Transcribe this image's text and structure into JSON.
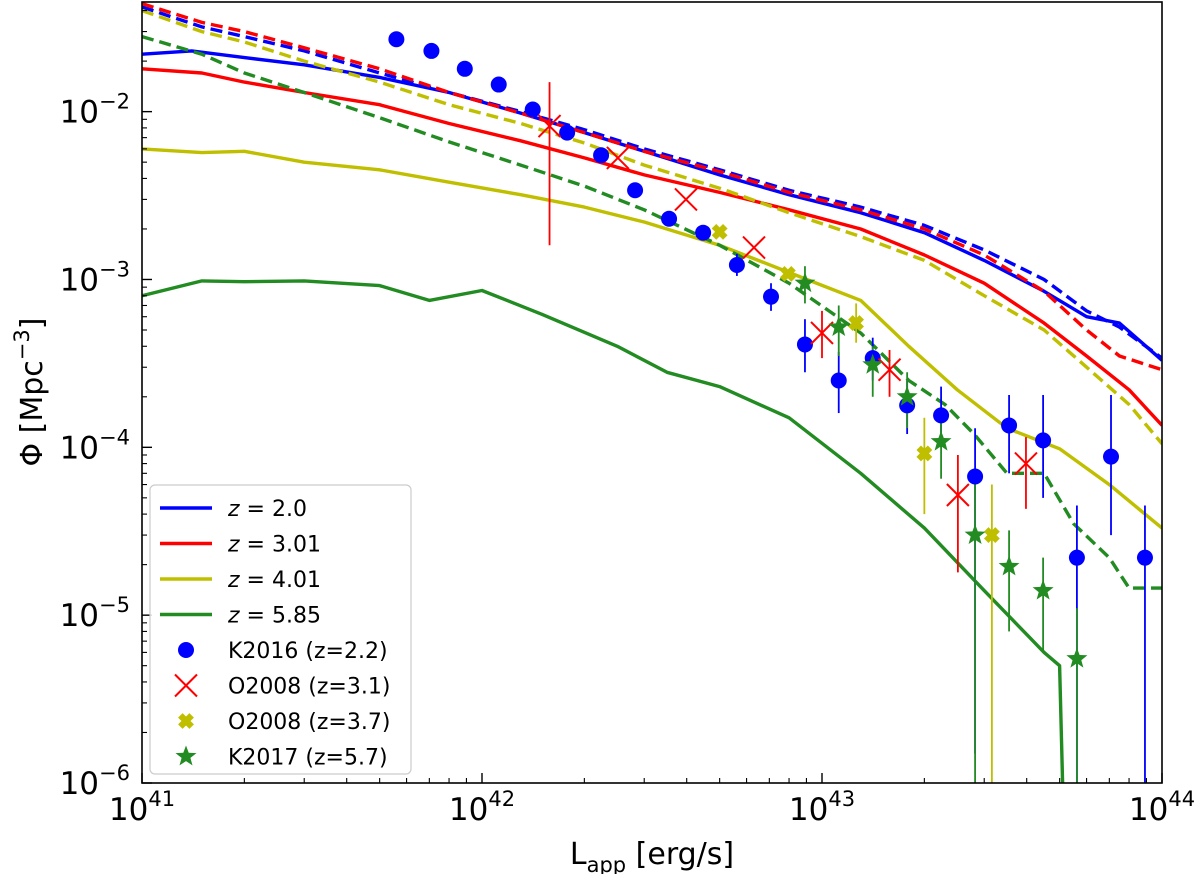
{
  "chart_data": {
    "type": "line",
    "xscale": "log",
    "yscale": "log",
    "xlabel_main": "L",
    "xlabel_sub": "app",
    "xlabel_unit": " [erg/s]",
    "ylabel_main": "Φ [Mpc",
    "ylabel_sup": "−3",
    "ylabel_end": "]",
    "xlim": [
      1e+41,
      1e+44
    ],
    "ylim": [
      1e-06,
      0.045
    ],
    "x_ticks": [
      {
        "value": 1e+41,
        "base": "10",
        "exp": "41"
      },
      {
        "value": 1e+42,
        "base": "10",
        "exp": "42"
      },
      {
        "value": 1e+43,
        "base": "10",
        "exp": "43"
      },
      {
        "value": 1e+44,
        "base": "10",
        "exp": "44"
      }
    ],
    "y_ticks": [
      {
        "value": 1e-06,
        "base": "10",
        "exp": "−6"
      },
      {
        "value": 1e-05,
        "base": "10",
        "exp": "−5"
      },
      {
        "value": 0.0001,
        "base": "10",
        "exp": "−4"
      },
      {
        "value": 0.001,
        "base": "10",
        "exp": "−3"
      },
      {
        "value": 0.01,
        "base": "10",
        "exp": "−2"
      }
    ],
    "legend_position": "lower-left",
    "model_series": [
      {
        "name": "z = 2.0",
        "z": "2.0",
        "color": "#0000ff",
        "solid": [
          [
            1e+41,
            0.022
          ],
          [
            1.4e+41,
            0.023
          ],
          [
            2e+41,
            0.021
          ],
          [
            3e+41,
            0.019
          ],
          [
            5e+41,
            0.016
          ],
          [
            8e+41,
            0.013
          ],
          [
            1.3e+42,
            0.0098
          ],
          [
            2e+42,
            0.0075
          ],
          [
            3e+42,
            0.0058
          ],
          [
            5e+42,
            0.0042
          ],
          [
            8e+42,
            0.0032
          ],
          [
            1.3e+43,
            0.0025
          ],
          [
            2e+43,
            0.0019
          ],
          [
            3e+43,
            0.0013
          ],
          [
            4.5e+43,
            0.00085
          ],
          [
            6e+43,
            0.0006
          ],
          [
            7.5e+43,
            0.00055
          ],
          [
            1e+44,
            0.00033
          ]
        ],
        "dashed": [
          [
            1e+41,
            0.042
          ],
          [
            1.5e+41,
            0.032
          ],
          [
            2e+41,
            0.028
          ],
          [
            3e+41,
            0.023
          ],
          [
            5e+41,
            0.017
          ],
          [
            8e+41,
            0.013
          ],
          [
            1.3e+42,
            0.01
          ],
          [
            2e+42,
            0.0078
          ],
          [
            3e+42,
            0.006
          ],
          [
            5e+42,
            0.0045
          ],
          [
            8e+42,
            0.0034
          ],
          [
            1.3e+43,
            0.0027
          ],
          [
            2e+43,
            0.0021
          ],
          [
            3e+43,
            0.0015
          ],
          [
            4.5e+43,
            0.001
          ],
          [
            6e+43,
            0.00065
          ],
          [
            7.5e+43,
            0.00052
          ],
          [
            1e+44,
            0.00034
          ]
        ]
      },
      {
        "name": "z = 3.01",
        "z": "3.01",
        "color": "#ff0000",
        "solid": [
          [
            1e+41,
            0.018
          ],
          [
            1.5e+41,
            0.017
          ],
          [
            2e+41,
            0.015
          ],
          [
            3e+41,
            0.013
          ],
          [
            5e+41,
            0.011
          ],
          [
            8e+41,
            0.0085
          ],
          [
            1.3e+42,
            0.0067
          ],
          [
            2e+42,
            0.0053
          ],
          [
            3e+42,
            0.0042
          ],
          [
            5e+42,
            0.0033
          ],
          [
            8e+42,
            0.0026
          ],
          [
            1.3e+43,
            0.002
          ],
          [
            2e+43,
            0.0014
          ],
          [
            3e+43,
            0.00095
          ],
          [
            4.5e+43,
            0.00055
          ],
          [
            6e+43,
            0.00035
          ],
          [
            8e+43,
            0.00022
          ],
          [
            1e+44,
            0.000135
          ]
        ],
        "dashed": [
          [
            1e+41,
            0.044
          ],
          [
            1.5e+41,
            0.034
          ],
          [
            2e+41,
            0.03
          ],
          [
            3e+41,
            0.024
          ],
          [
            5e+41,
            0.018
          ],
          [
            8e+41,
            0.013
          ],
          [
            1.3e+42,
            0.0098
          ],
          [
            2e+42,
            0.0075
          ],
          [
            3e+42,
            0.0058
          ],
          [
            5e+42,
            0.0044
          ],
          [
            8e+42,
            0.0033
          ],
          [
            1.3e+43,
            0.0026
          ],
          [
            2e+43,
            0.002
          ],
          [
            3e+43,
            0.0014
          ],
          [
            4.5e+43,
            0.00085
          ],
          [
            6e+43,
            0.0005
          ],
          [
            7.5e+43,
            0.00035
          ],
          [
            1e+44,
            0.00029
          ]
        ]
      },
      {
        "name": "z = 4.01",
        "z": "4.01",
        "color": "#bfbf00",
        "solid": [
          [
            1e+41,
            0.006
          ],
          [
            1.5e+41,
            0.0057
          ],
          [
            2e+41,
            0.0058
          ],
          [
            3e+41,
            0.005
          ],
          [
            5e+41,
            0.0045
          ],
          [
            8e+41,
            0.0038
          ],
          [
            1.3e+42,
            0.0032
          ],
          [
            2e+42,
            0.0027
          ],
          [
            3e+42,
            0.0022
          ],
          [
            5e+42,
            0.0016
          ],
          [
            8e+42,
            0.0011
          ],
          [
            1.3e+43,
            0.00075
          ],
          [
            1.8e+43,
            0.0004
          ],
          [
            2.5e+43,
            0.00022
          ],
          [
            3.5e+43,
            0.00013
          ],
          [
            5e+43,
            9.8e-05
          ],
          [
            7e+43,
            6e-05
          ],
          [
            1e+44,
            3.3e-05
          ]
        ],
        "dashed": [
          [
            1e+41,
            0.04
          ],
          [
            1.5e+41,
            0.03
          ],
          [
            2e+41,
            0.026
          ],
          [
            3e+41,
            0.02
          ],
          [
            5e+41,
            0.015
          ],
          [
            8e+41,
            0.011
          ],
          [
            1.3e+42,
            0.0085
          ],
          [
            2e+42,
            0.0065
          ],
          [
            3e+42,
            0.0048
          ],
          [
            5e+42,
            0.0035
          ],
          [
            8e+42,
            0.0025
          ],
          [
            1.3e+43,
            0.0018
          ],
          [
            2e+43,
            0.0013
          ],
          [
            3e+43,
            0.0008
          ],
          [
            4.5e+43,
            0.0005
          ],
          [
            6e+43,
            0.0003
          ],
          [
            8e+43,
            0.00018
          ],
          [
            1e+44,
            0.000105
          ]
        ]
      },
      {
        "name": "z = 5.85",
        "z": "5.85",
        "color": "#228b22",
        "solid": [
          [
            1e+41,
            0.0008
          ],
          [
            1.5e+41,
            0.00098
          ],
          [
            2e+41,
            0.00097
          ],
          [
            3e+41,
            0.00098
          ],
          [
            5e+41,
            0.00092
          ],
          [
            7e+41,
            0.00075
          ],
          [
            1e+42,
            0.00086
          ],
          [
            1.5e+42,
            0.00062
          ],
          [
            2.5e+42,
            0.0004
          ],
          [
            3.5e+42,
            0.00028
          ],
          [
            5e+42,
            0.00023
          ],
          [
            8e+42,
            0.00015
          ],
          [
            1.3e+43,
            7e-05
          ],
          [
            2e+43,
            3.3e-05
          ],
          [
            3e+43,
            1.4e-05
          ],
          [
            4.5e+43,
            6e-06
          ],
          [
            5e+43,
            5e-06
          ],
          [
            5.1e+43,
            1e-06
          ]
        ],
        "dashed": [
          [
            1e+41,
            0.028
          ],
          [
            1.5e+41,
            0.022
          ],
          [
            2e+41,
            0.017
          ],
          [
            3e+41,
            0.013
          ],
          [
            5e+41,
            0.0092
          ],
          [
            8e+41,
            0.0066
          ],
          [
            1.3e+42,
            0.0048
          ],
          [
            2e+42,
            0.0036
          ],
          [
            3e+42,
            0.0026
          ],
          [
            5e+42,
            0.0016
          ],
          [
            8e+42,
            0.00095
          ],
          [
            1.3e+43,
            0.00048
          ],
          [
            1.8e+43,
            0.00025
          ],
          [
            2.3e+43,
            0.00018
          ],
          [
            2.8e+43,
            0.00012
          ],
          [
            3.5e+43,
            7e-05
          ],
          [
            4.5e+43,
            7e-05
          ],
          [
            5.5e+43,
            3.5e-05
          ],
          [
            7e+43,
            2.2e-05
          ],
          [
            8e+43,
            1.45e-05
          ],
          [
            1e+44,
            1.45e-05
          ]
        ]
      }
    ],
    "observations": [
      {
        "name": "K2016 (z=2.2)",
        "marker": "circle",
        "color": "#0000ff",
        "points": [
          [
            5.6e+41,
            0.027,
            0.027,
            0.027
          ],
          [
            7.1e+41,
            0.023,
            0.023,
            0.023
          ],
          [
            8.9e+41,
            0.018,
            0.018,
            0.018
          ],
          [
            1.12e+42,
            0.0145,
            0.0145,
            0.0145
          ],
          [
            1.41e+42,
            0.0103,
            0.0103,
            0.0103
          ],
          [
            1.78e+42,
            0.0075,
            0.0075,
            0.0075
          ],
          [
            2.24e+42,
            0.0055,
            0.0055,
            0.0055
          ],
          [
            2.82e+42,
            0.0034,
            0.0034,
            0.0034
          ],
          [
            3.55e+42,
            0.0023,
            0.0023,
            0.0023
          ],
          [
            4.47e+42,
            0.0019,
            0.0019,
            0.0019
          ],
          [
            5.62e+42,
            0.00122,
            0.00105,
            0.00142
          ],
          [
            7.08e+42,
            0.00079,
            0.00065,
            0.00095
          ],
          [
            8.91e+42,
            0.00041,
            0.00028,
            0.00058
          ],
          [
            1.12e+43,
            0.00025,
            0.00016,
            0.00037
          ],
          [
            1.41e+43,
            0.00034,
            0.00025,
            0.00045
          ],
          [
            1.78e+43,
            0.000178,
            0.00012,
            0.00025
          ],
          [
            2.24e+43,
            0.000155,
            0.0001,
            0.00023
          ],
          [
            2.82e+43,
            6.7e-05,
            1.5e-06,
            0.00013
          ],
          [
            3.55e+43,
            0.000135,
            7e-05,
            0.000205
          ],
          [
            4.47e+43,
            0.00011,
            5e-05,
            0.000205
          ],
          [
            5.62e+43,
            2.2e-05,
            1e-06,
            4.5e-05
          ],
          [
            7.08e+43,
            8.8e-05,
            3e-05,
            0.000205
          ],
          [
            8.91e+43,
            2.2e-05,
            1e-06,
            4.5e-05
          ]
        ]
      },
      {
        "name": "O2008 (z=3.1)",
        "marker": "x",
        "color": "#ff0000",
        "points": [
          [
            1.58e+42,
            0.0082,
            0.0016,
            0.015
          ],
          [
            2.51e+42,
            0.0053,
            0.0053,
            0.0053
          ],
          [
            3.98e+42,
            0.003,
            0.003,
            0.003
          ],
          [
            6.31e+42,
            0.00155,
            0.00155,
            0.00155
          ],
          [
            1e+43,
            0.00048,
            0.00034,
            0.00065
          ],
          [
            1.58e+43,
            0.00029,
            0.0002,
            0.00038
          ],
          [
            2.51e+43,
            5.2e-05,
            1.8e-05,
            9e-05
          ],
          [
            3.98e+43,
            8e-05,
            4.3e-05,
            0.000115
          ]
        ]
      },
      {
        "name": "O2008 (z=3.7)",
        "marker": "plus",
        "color": "#bfbf00",
        "points": [
          [
            5e+42,
            0.00192,
            0.00192,
            0.00192
          ],
          [
            7.94e+42,
            0.00108,
            0.00108,
            0.00108
          ],
          [
            1.26e+43,
            0.00055,
            0.00042,
            0.00072
          ],
          [
            2e+43,
            9.2e-05,
            4e-05,
            0.00015
          ],
          [
            3.16e+43,
            3e-05,
            1e-06,
            6e-05
          ]
        ]
      },
      {
        "name": "K2017 (z=5.7)",
        "marker": "star",
        "color": "#228b22",
        "points": [
          [
            8.91e+42,
            0.00095,
            0.00072,
            0.0012
          ],
          [
            1.12e+43,
            0.00052,
            0.00035,
            0.0007
          ],
          [
            1.41e+43,
            0.00031,
            0.0002,
            0.0004
          ],
          [
            1.78e+43,
            0.0002,
            0.00013,
            0.00028
          ],
          [
            2.24e+43,
            0.000108,
            6.5e-05,
            0.00016
          ],
          [
            2.82e+43,
            3e-05,
            1e-06,
            6e-05
          ],
          [
            3.55e+43,
            1.95e-05,
            8e-06,
            3.2e-05
          ],
          [
            4.47e+43,
            1.4e-05,
            6e-06,
            2.2e-05
          ],
          [
            5.62e+43,
            5.5e-06,
            1e-06,
            1.1e-05
          ]
        ]
      }
    ]
  }
}
